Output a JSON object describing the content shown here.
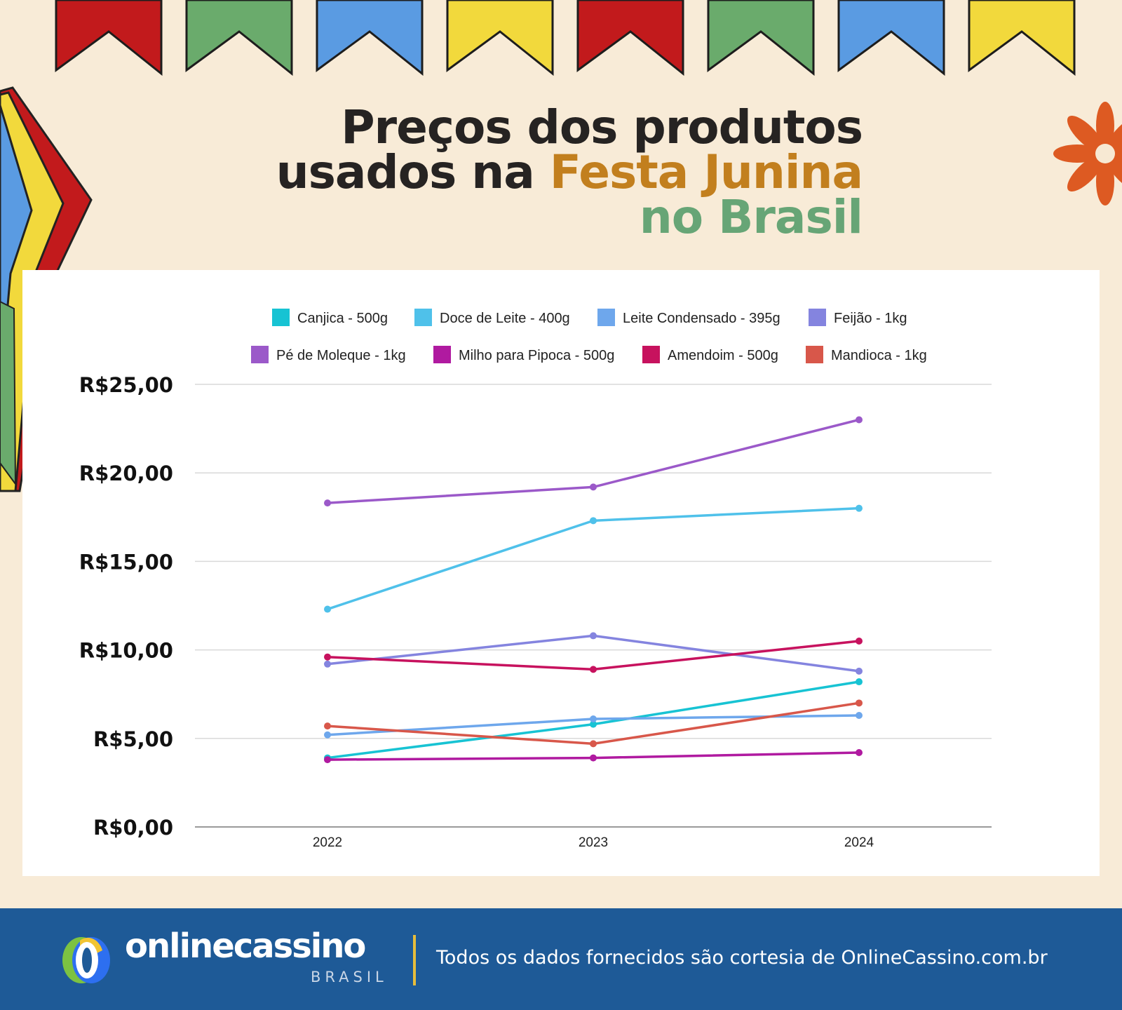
{
  "header": {
    "title_line1": "Preços dos produtos",
    "title_line2_plain": "usados na ",
    "title_line2_highlight": "Festa Junina",
    "title_line3": "no Brasil",
    "highlight_color_1": "#c27f1e",
    "highlight_color_2": "#67a576"
  },
  "decorations": {
    "bunting_colors": [
      "#c21a1c",
      "#6aab6c",
      "#5a9be2",
      "#f2d93c",
      "#c21a1c",
      "#6aab6c",
      "#5a9be2",
      "#f2d93c"
    ],
    "flower_color": "#dd5a22"
  },
  "chart_data": {
    "type": "line",
    "x": [
      "2022",
      "2023",
      "2024"
    ],
    "ylim": [
      0,
      25
    ],
    "y_ticks": [
      "R$0,00",
      "R$5,00",
      "R$10,00",
      "R$15,00",
      "R$20,00",
      "R$25,00"
    ],
    "y_tick_values": [
      0,
      5,
      10,
      15,
      20,
      25
    ],
    "grid": true,
    "legend_position": "top",
    "series": [
      {
        "name": "Canjica - 500g",
        "color": "#17c3d3",
        "values": [
          3.9,
          5.8,
          8.2
        ]
      },
      {
        "name": "Doce de Leite - 400g",
        "color": "#4fc1ea",
        "values": [
          12.3,
          17.3,
          18.0
        ]
      },
      {
        "name": "Leite Condensado - 395g",
        "color": "#6ea7ec",
        "values": [
          5.2,
          6.1,
          6.3
        ]
      },
      {
        "name": "Feijão - 1kg",
        "color": "#8484df",
        "values": [
          9.2,
          10.8,
          8.8
        ]
      },
      {
        "name": "Pé de Moleque - 1kg",
        "color": "#9b59c9",
        "values": [
          18.3,
          19.2,
          23.0
        ]
      },
      {
        "name": "Milho para Pipoca - 500g",
        "color": "#b01aa0",
        "values": [
          3.8,
          3.9,
          4.2
        ]
      },
      {
        "name": "Amendoim - 500g",
        "color": "#c7125e",
        "values": [
          9.6,
          8.9,
          10.5
        ]
      },
      {
        "name": "Mandioca - 1kg",
        "color": "#d8574a",
        "values": [
          5.7,
          4.7,
          7.0
        ]
      }
    ]
  },
  "footer": {
    "logo_text": "onlinecassino",
    "logo_sub": "BRASIL",
    "credit": "Todos os dados fornecidos são cortesia de OnlineCassino.com.br",
    "background": "#1e5a97",
    "divider_color": "#e7bd3b"
  }
}
